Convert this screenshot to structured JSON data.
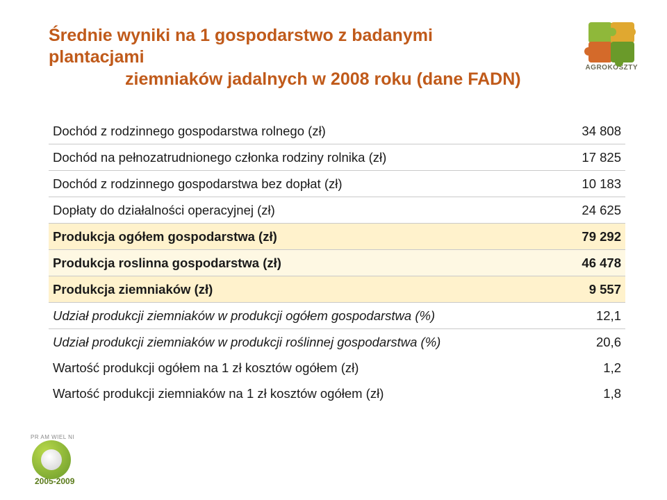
{
  "title_line1": "Średnie wyniki na 1 gospodarstwo z badanymi plantacjami",
  "title_line2": "ziemniaków jadalnych w 2008 roku (dane FADN)",
  "logo_text": "AGROKOSZTY",
  "rows": [
    {
      "label": "Dochód z rodzinnego gospodarstwa rolnego (zł)",
      "value": "34 808",
      "cls": "sep"
    },
    {
      "label": "Dochód na pełnozatrudnionego członka rodziny rolnika (zł)",
      "value": "17 825",
      "cls": "sep"
    },
    {
      "label": "Dochód z rodzinnego gospodarstwa bez dopłat (zł)",
      "value": "10 183",
      "cls": "sep"
    },
    {
      "label": "Dopłaty do działalności operacyjnej (zł)",
      "value": "24 625",
      "cls": "sep"
    },
    {
      "label": "Produkcja ogółem gospodarstwa (zł)",
      "value": "79 292",
      "cls": "sep bold hl"
    },
    {
      "label": "Produkcja roslinna gospodarstwa (zł)",
      "value": "46 478",
      "cls": "sep bold hl2"
    },
    {
      "label": "Produkcja ziemniaków (zł)",
      "value": "9 557",
      "cls": "sep bold hl"
    },
    {
      "label": "Udział produkcji ziemniaków w produkcji ogółem gospodarstwa (%)",
      "value": "12,1",
      "cls": "sep italic"
    },
    {
      "label": "Udział produkcji ziemniaków w produkcji roślinnej gospodarstwa (%)",
      "value": "20,6",
      "cls": "italic tight"
    },
    {
      "label": "Wartość produkcji ogółem  na 1 zł kosztów ogółem (zł)",
      "value": "1,2",
      "cls": "tight"
    },
    {
      "label": "Wartość produkcji ziemniaków na 1 zł kosztów ogółem (zł)",
      "value": "1,8",
      "cls": "tight"
    }
  ],
  "footer_years": "2005-2009",
  "footer_tiny": "PR   AM  WIEL   NI",
  "colors": {
    "title": "#c05a1a",
    "highlight1": "#fff2cc",
    "highlight2": "#fef8e3",
    "sep": "#c9c9c9"
  }
}
